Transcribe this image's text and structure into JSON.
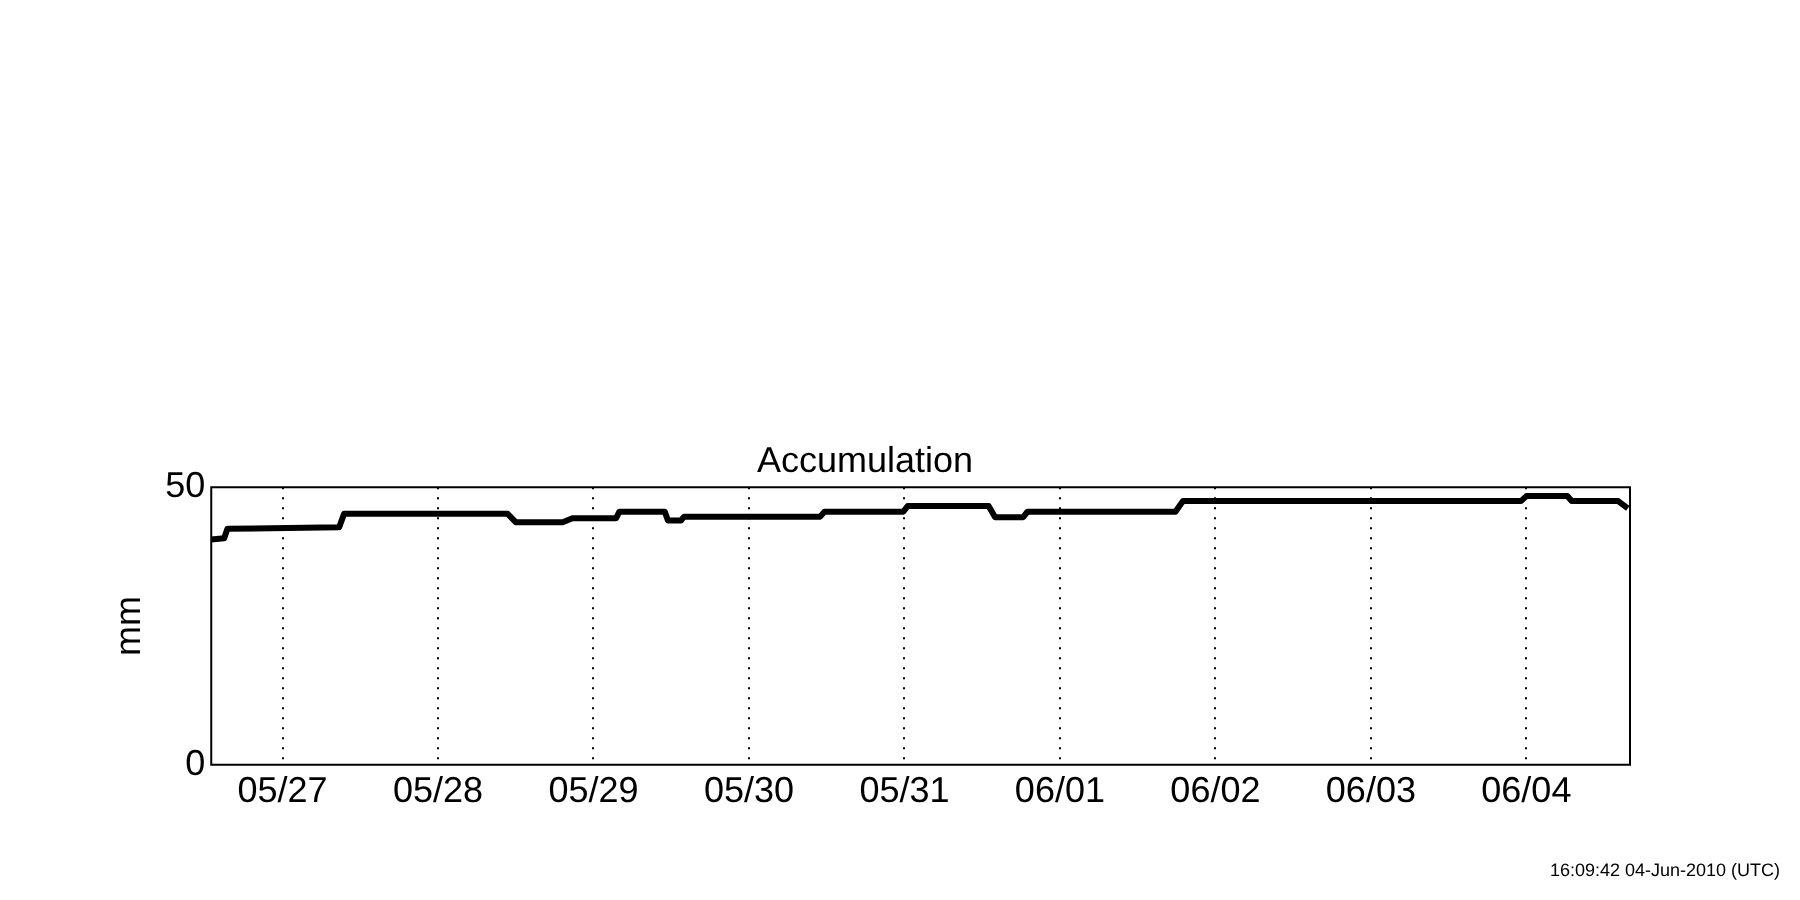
{
  "chart_data": {
    "type": "line",
    "title": "Accumulation",
    "ylabel": "mm",
    "x": [
      "2010-05-26T13:00",
      "2010-05-26T15:00",
      "2010-05-26T15:30",
      "2010-05-27T08:45",
      "2010-05-27T09:30",
      "2010-05-28T10:45",
      "2010-05-28T12:00",
      "2010-05-28T19:15",
      "2010-05-28T20:45",
      "2010-05-29T03:30",
      "2010-05-29T04:00",
      "2010-05-29T11:00",
      "2010-05-29T11:30",
      "2010-05-29T13:30",
      "2010-05-29T14:00",
      "2010-05-30T11:00",
      "2010-05-30T11:40",
      "2010-05-30T23:50",
      "2010-05-31T00:30",
      "2010-05-31T13:00",
      "2010-05-31T14:00",
      "2010-05-31T18:20",
      "2010-05-31T19:00",
      "2010-06-01T17:50",
      "2010-06-01T19:00",
      "2010-06-03T23:10",
      "2010-06-04T00:00",
      "2010-06-04T06:20",
      "2010-06-04T07:00",
      "2010-06-04T14:10",
      "2010-06-04T15:40"
    ],
    "values": [
      40.6,
      40.8,
      42.5,
      42.8,
      45.2,
      45.2,
      43.7,
      43.7,
      44.4,
      44.4,
      45.6,
      45.6,
      44.0,
      44.0,
      44.7,
      44.7,
      45.6,
      45.6,
      46.6,
      46.6,
      44.6,
      44.6,
      45.6,
      45.6,
      47.5,
      47.5,
      48.4,
      48.4,
      47.5,
      47.5,
      46.2
    ],
    "color": "#000000",
    "marker": "none",
    "line_style": "solid",
    "xlim": [
      "2010-05-26T13:00",
      "2010-06-04T16:00"
    ],
    "xticks": [
      {
        "value": "2010-05-27",
        "label": "05/27"
      },
      {
        "value": "2010-05-28",
        "label": "05/28"
      },
      {
        "value": "2010-05-29",
        "label": "05/29"
      },
      {
        "value": "2010-05-30",
        "label": "05/30"
      },
      {
        "value": "2010-05-31",
        "label": "05/31"
      },
      {
        "value": "2010-06-01",
        "label": "06/01"
      },
      {
        "value": "2010-06-02",
        "label": "06/02"
      },
      {
        "value": "2010-06-03",
        "label": "06/03"
      },
      {
        "value": "2010-06-04",
        "label": "06/04"
      }
    ],
    "ylim": [
      0,
      50
    ],
    "yticks": [
      0,
      50
    ],
    "grid": "x",
    "legend": false,
    "annotations": [
      "16:09:42 04-Jun-2010 (UTC)"
    ]
  }
}
